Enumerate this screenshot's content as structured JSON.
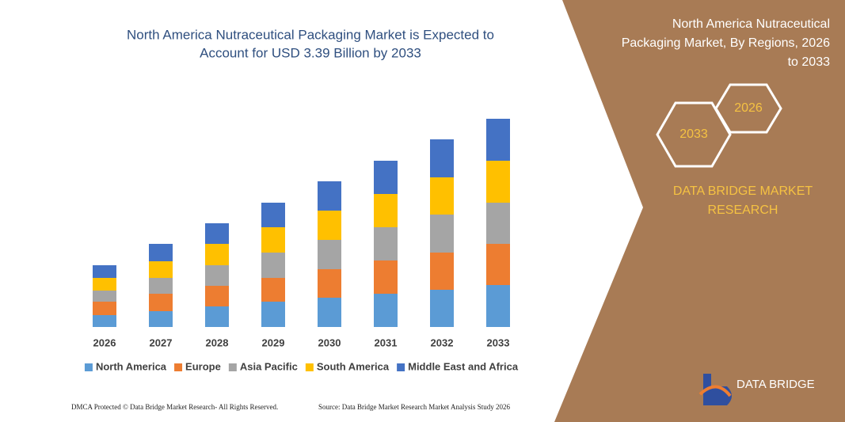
{
  "chart_data": {
    "type": "stacked_bar",
    "title": "North America Nutraceutical Packaging Market is Expected to",
    "title_line2": "Account for USD 3.39 Billion by 2033",
    "categories": [
      "2026",
      "2027",
      "2028",
      "2029",
      "2030",
      "2031",
      "2032",
      "2033"
    ],
    "series": [
      {
        "name": "North America",
        "color": "#5b9bd5",
        "values": [
          15,
          20,
          26,
          32,
          37,
          42,
          47,
          53
        ]
      },
      {
        "name": "Europe",
        "color": "#ed7d31",
        "values": [
          17,
          22,
          26,
          30,
          36,
          42,
          47,
          52
        ]
      },
      {
        "name": "Asia Pacific",
        "color": "#a5a5a5",
        "values": [
          14,
          20,
          26,
          32,
          37,
          42,
          48,
          52
        ]
      },
      {
        "name": "South America",
        "color": "#ffc000",
        "values": [
          16,
          21,
          27,
          32,
          37,
          42,
          47,
          53
        ]
      },
      {
        "name": "Middle East and Africa",
        "color": "#4472c4",
        "values": [
          16,
          22,
          26,
          31,
          37,
          42,
          48,
          53
        ]
      }
    ],
    "legend": "bottom"
  },
  "panel": {
    "title": [
      "North America Nutraceutical",
      "Packaging Market, By Regions, 2026",
      "to 2033"
    ],
    "hex_left": "2033",
    "hex_right": "2026",
    "brand": [
      "DATA BRIDGE MARKET",
      "RESEARCH"
    ]
  },
  "logo": "DATA BRIDGE",
  "footer": {
    "left": "DMCA Protected © Data Bridge Market Research-  All Rights Reserved.",
    "right": "Source: Data Bridge Market Research  Market Analysis Study 2026"
  }
}
